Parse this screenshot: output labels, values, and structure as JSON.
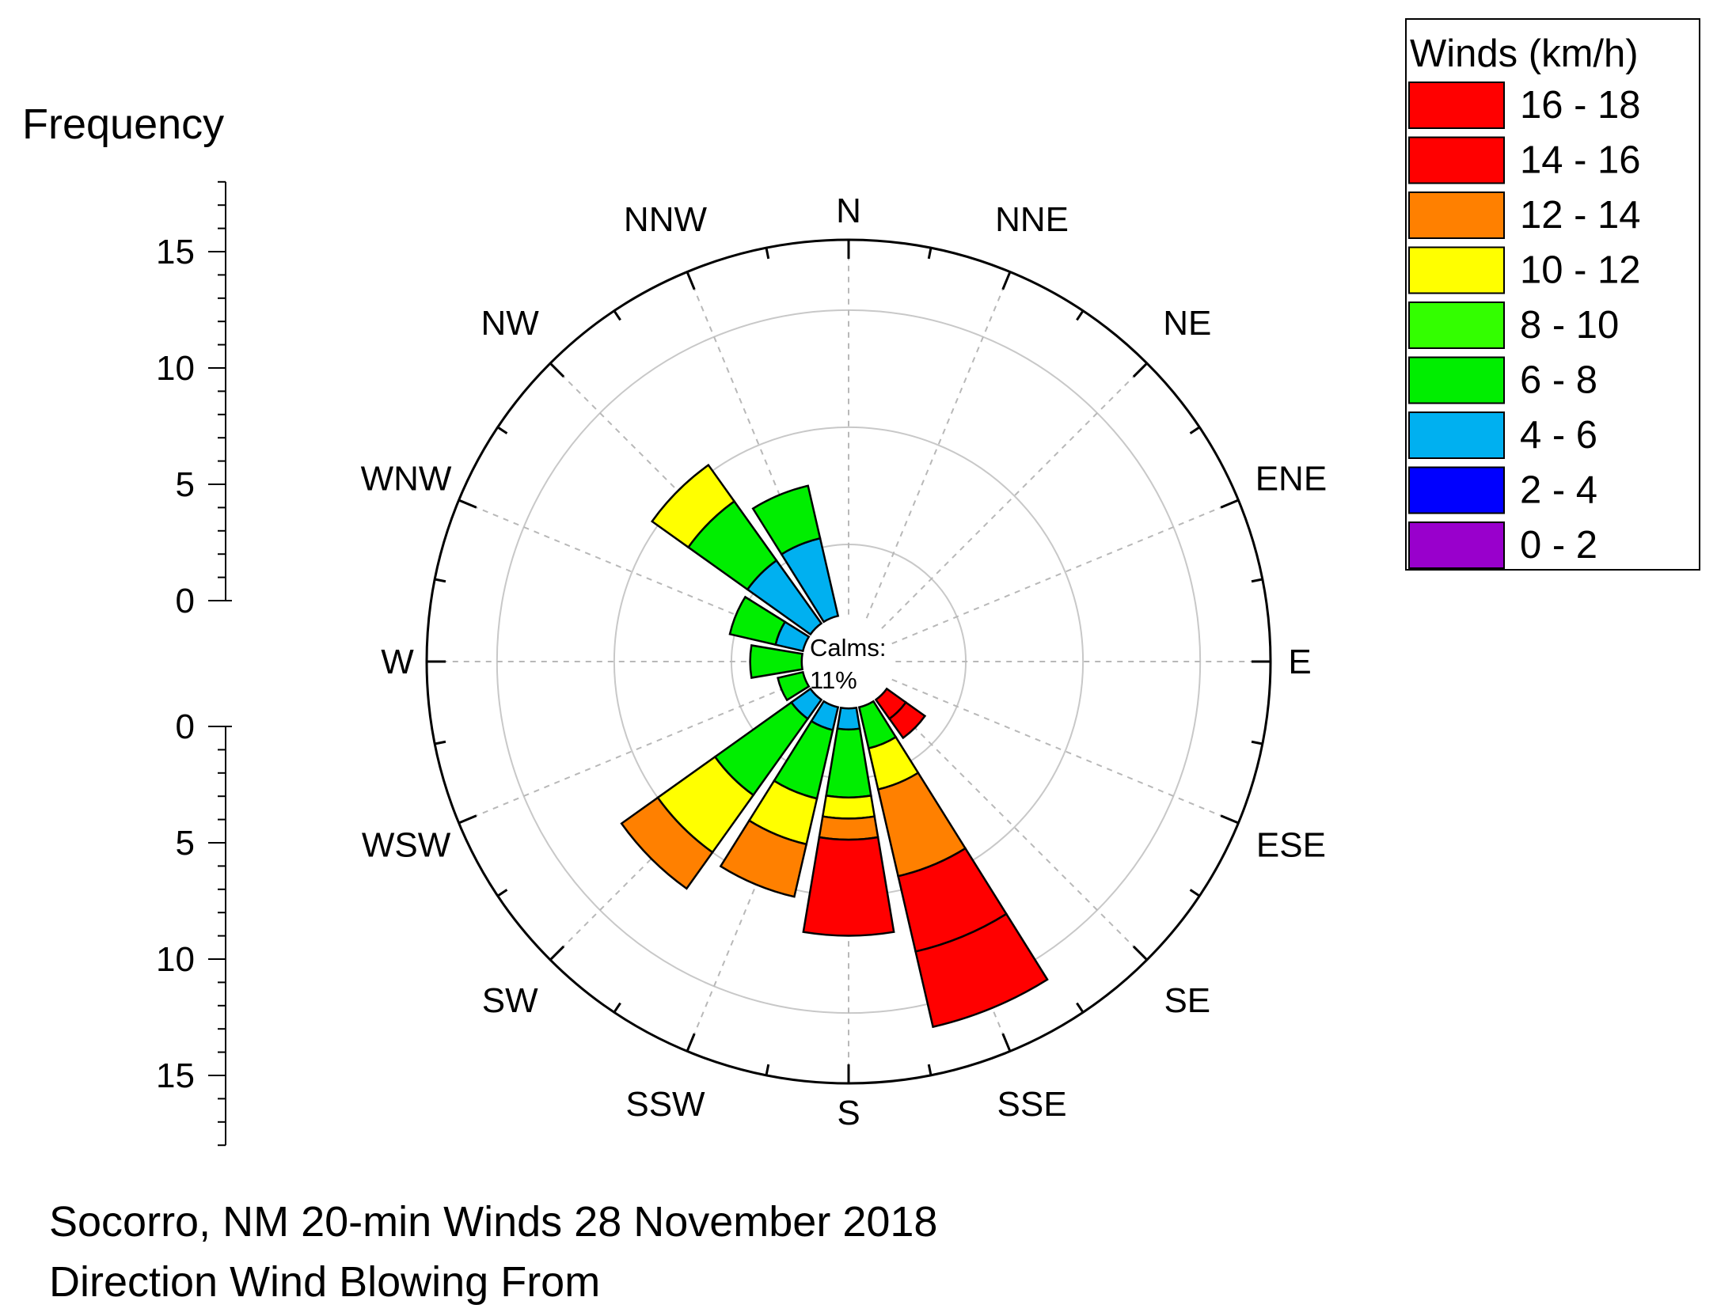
{
  "chart_data": {
    "type": "wind-rose",
    "title": "Socorro, NM 20-min Winds 28 November 2018",
    "subtitle": "Direction Wind Blowing From",
    "frequency_axis_label": "Frequency",
    "frequency_ticks": [
      0,
      5,
      10,
      15
    ],
    "radial_max": 18,
    "calms_label": "Calms:",
    "calms_value": "11%",
    "calm_radius": 2,
    "directions": [
      "N",
      "NNE",
      "NE",
      "ENE",
      "E",
      "ESE",
      "SE",
      "SSE",
      "S",
      "SSW",
      "SW",
      "WSW",
      "W",
      "WNW",
      "NW",
      "NNW"
    ],
    "legend": {
      "title": "Winds (km/h)",
      "bins": [
        {
          "label": "16 - 18",
          "color": "#ff0000"
        },
        {
          "label": "14 - 16",
          "color": "#ff0000"
        },
        {
          "label": "12 - 14",
          "color": "#ff8000"
        },
        {
          "label": "10 - 12",
          "color": "#ffff00"
        },
        {
          "label": "8 - 10",
          "color": "#33ff00"
        },
        {
          "label": "6 - 8",
          "color": "#00ee00"
        },
        {
          "label": "4 - 6",
          "color": "#00b0f0"
        },
        {
          "label": "2 - 4",
          "color": "#0000ff"
        },
        {
          "label": "0 - 2",
          "color": "#9900cc"
        }
      ]
    },
    "sectors": [
      {
        "direction": "SE",
        "segments": [
          {
            "bin": "14 - 16",
            "from": 2.0,
            "to": 3.0
          },
          {
            "bin": "16 - 18",
            "from": 3.0,
            "to": 4.0
          }
        ]
      },
      {
        "direction": "SSE",
        "segments": [
          {
            "bin": "6 - 8",
            "from": 2.0,
            "to": 3.8
          },
          {
            "bin": "10 - 12",
            "from": 3.8,
            "to": 5.6
          },
          {
            "bin": "12 - 14",
            "from": 5.6,
            "to": 9.4
          },
          {
            "bin": "14 - 16",
            "from": 9.4,
            "to": 12.7
          },
          {
            "bin": "16 - 18",
            "from": 12.7,
            "to": 16.0
          }
        ]
      },
      {
        "direction": "S",
        "segments": [
          {
            "bin": "4 - 6",
            "from": 2.0,
            "to": 2.9
          },
          {
            "bin": "6 - 8",
            "from": 2.9,
            "to": 5.8
          },
          {
            "bin": "10 - 12",
            "from": 5.8,
            "to": 6.7
          },
          {
            "bin": "12 - 14",
            "from": 6.7,
            "to": 7.6
          },
          {
            "bin": "16 - 18",
            "from": 7.6,
            "to": 11.7
          }
        ]
      },
      {
        "direction": "SSW",
        "segments": [
          {
            "bin": "4 - 6",
            "from": 2.0,
            "to": 3.0
          },
          {
            "bin": "6 - 8",
            "from": 3.0,
            "to": 6.0
          },
          {
            "bin": "10 - 12",
            "from": 6.0,
            "to": 8.0
          },
          {
            "bin": "12 - 14",
            "from": 8.0,
            "to": 10.3
          }
        ]
      },
      {
        "direction": "SW",
        "segments": [
          {
            "bin": "4 - 6",
            "from": 2.0,
            "to": 3.0
          },
          {
            "bin": "6 - 8",
            "from": 3.0,
            "to": 7.0
          },
          {
            "bin": "10 - 12",
            "from": 7.0,
            "to": 10.0
          },
          {
            "bin": "12 - 14",
            "from": 10.0,
            "to": 11.9
          }
        ]
      },
      {
        "direction": "WSW",
        "segments": [
          {
            "bin": "6 - 8",
            "from": 2.0,
            "to": 3.1
          }
        ]
      },
      {
        "direction": "W",
        "segments": [
          {
            "bin": "6 - 8",
            "from": 2.0,
            "to": 4.2
          }
        ]
      },
      {
        "direction": "WNW",
        "segments": [
          {
            "bin": "4 - 6",
            "from": 2.0,
            "to": 3.2
          },
          {
            "bin": "6 - 8",
            "from": 3.2,
            "to": 5.2
          }
        ]
      },
      {
        "direction": "NW",
        "segments": [
          {
            "bin": "4 - 6",
            "from": 2.0,
            "to": 5.3
          },
          {
            "bin": "6 - 8",
            "from": 5.3,
            "to": 8.4
          },
          {
            "bin": "10 - 12",
            "from": 8.4,
            "to": 10.3
          }
        ]
      },
      {
        "direction": "NNW",
        "segments": [
          {
            "bin": "4 - 6",
            "from": 2.0,
            "to": 5.4
          },
          {
            "bin": "6 - 8",
            "from": 5.4,
            "to": 7.7
          }
        ]
      }
    ]
  }
}
